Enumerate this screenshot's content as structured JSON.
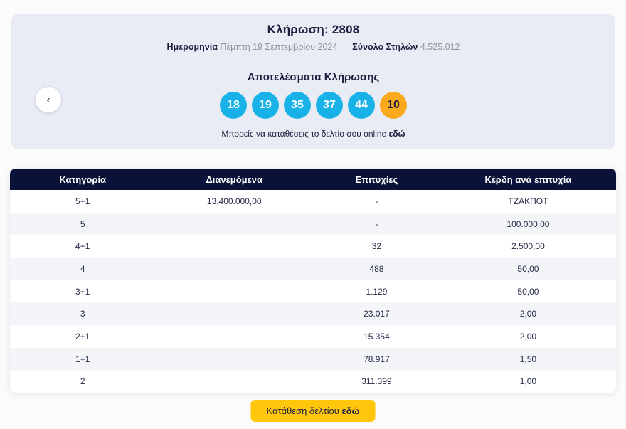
{
  "draw": {
    "title": "Κλήρωση: 2808",
    "date_label": "Ημερομηνία",
    "date_value": "Πέμπτη 19 Σεπτεμβρίου 2024",
    "columns_label": "Σύνολο Στηλών",
    "columns_value": "4.525.012",
    "results_title": "Αποτελέσματα Κλήρωσης",
    "numbers": [
      "18",
      "19",
      "35",
      "37",
      "44"
    ],
    "bonus_number": "10",
    "online_text": "Μπορείς να καταθέσεις το δελτίο σου online",
    "online_link": "εδώ",
    "prev_chevron": "‹"
  },
  "table": {
    "headers": [
      "Κατηγορία",
      "Διανεμόμενα",
      "Επιτυχίες",
      "Κέρδη ανά επιτυχία"
    ],
    "rows": [
      {
        "category": "5+1",
        "distributed": "13.400.000,00",
        "winners": "-",
        "payout": "ΤΖΑΚΠΟΤ"
      },
      {
        "category": "5",
        "distributed": "",
        "winners": "-",
        "payout": "100.000,00"
      },
      {
        "category": "4+1",
        "distributed": "",
        "winners": "32",
        "payout": "2.500,00"
      },
      {
        "category": "4",
        "distributed": "",
        "winners": "488",
        "payout": "50,00"
      },
      {
        "category": "3+1",
        "distributed": "",
        "winners": "1.129",
        "payout": "50,00"
      },
      {
        "category": "3",
        "distributed": "",
        "winners": "23.017",
        "payout": "2,00"
      },
      {
        "category": "2+1",
        "distributed": "",
        "winners": "15.354",
        "payout": "2,00"
      },
      {
        "category": "1+1",
        "distributed": "",
        "winners": "78.917",
        "payout": "1,50"
      },
      {
        "category": "2",
        "distributed": "",
        "winners": "311.399",
        "payout": "1,00"
      }
    ]
  },
  "footer": {
    "button_text": "Κατάθεση δελτίου",
    "button_link": "εδώ"
  },
  "colors": {
    "navy": "#0B1239",
    "text-navy": "#1B2040",
    "card": "#E9ECF5",
    "blue": "#18B2E9",
    "orange": "#F9A91B",
    "yellow": "#FFC60B",
    "alt-row": "#F4F5F9"
  }
}
